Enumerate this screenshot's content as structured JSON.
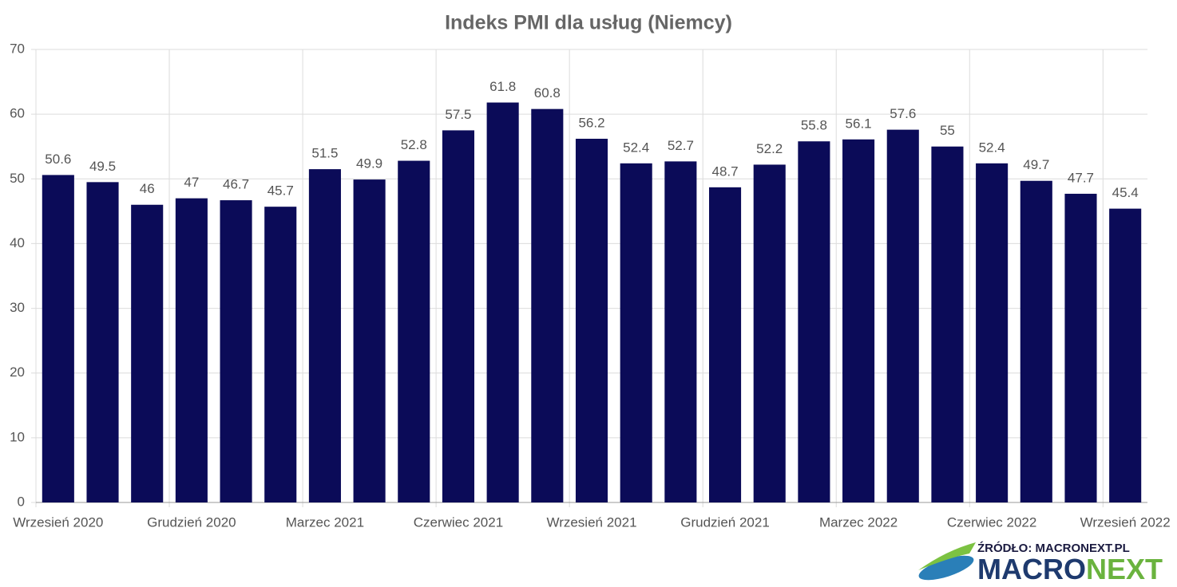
{
  "chart_data": {
    "type": "bar",
    "title": "Indeks PMI dla usług (Niemcy)",
    "categories": [
      "Wrzesień 2020",
      null,
      null,
      "Grudzień 2020",
      null,
      null,
      "Marzec 2021",
      null,
      null,
      "Czerwiec 2021",
      null,
      null,
      "Wrzesień 2021",
      null,
      null,
      "Grudzień 2021",
      null,
      null,
      "Marzec 2022",
      null,
      null,
      "Czerwiec 2022",
      null,
      null,
      "Wrzesień 2022"
    ],
    "values": [
      50.6,
      49.5,
      46,
      47,
      46.7,
      45.7,
      51.5,
      49.9,
      52.8,
      57.5,
      61.8,
      60.8,
      56.2,
      52.4,
      52.7,
      48.7,
      52.2,
      55.8,
      56.1,
      57.6,
      55,
      52.4,
      49.7,
      47.7,
      45.4
    ],
    "color": "#0b0b58",
    "ylim": [
      0,
      70
    ],
    "yticks": [
      0,
      10,
      20,
      30,
      40,
      50,
      60,
      70
    ],
    "grid": true,
    "source": "ŹRÓDŁO: MACRONEXT.PL",
    "logo": [
      "macro",
      "NEXT"
    ]
  }
}
